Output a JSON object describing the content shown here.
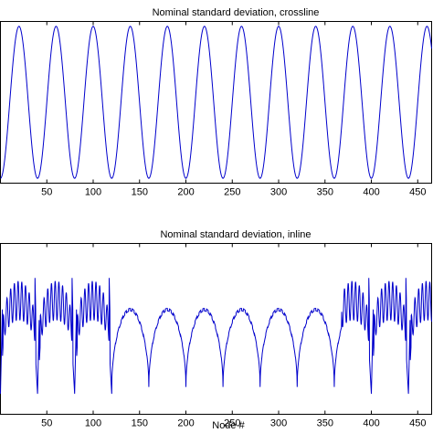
{
  "chart_data": [
    {
      "type": "line",
      "title": "Nominal standard deviation, crossline",
      "xlabel": "",
      "ylabel": "",
      "xlim": [
        0,
        465
      ],
      "ylim": [
        0,
        1
      ],
      "xticks": [
        50,
        100,
        150,
        200,
        250,
        300,
        350,
        400,
        450
      ],
      "grid": false,
      "series": [
        {
          "color": "#0000cc",
          "period": 40,
          "minima_x": [
            40,
            80,
            120,
            160,
            200,
            240,
            280,
            320,
            360,
            400,
            440
          ],
          "y_max": 0.97,
          "y_min": 0.03
        }
      ]
    },
    {
      "type": "line",
      "title": "Nominal standard deviation, inline",
      "xlabel": "Node #",
      "ylabel": "",
      "xlim": [
        0,
        465
      ],
      "ylim": [
        0,
        1
      ],
      "xticks": [
        50,
        100,
        150,
        200,
        250,
        300,
        350,
        400,
        450
      ],
      "grid": false,
      "series": [
        {
          "color": "#0000cc",
          "lobe_period": 40,
          "lobe_minima_x": [
            40,
            80,
            120,
            160,
            200,
            240,
            280,
            320,
            360,
            400,
            440
          ],
          "lobe_max": 0.62,
          "lobe_min": 0.16,
          "fine_period": 4,
          "dense_ranges": [
            [
              0,
              120
            ],
            [
              368,
              465
            ]
          ],
          "dense_max": 0.78,
          "dense_dip": 0.55,
          "spike_top": 0.86,
          "spike_min": 0.12
        }
      ]
    }
  ]
}
